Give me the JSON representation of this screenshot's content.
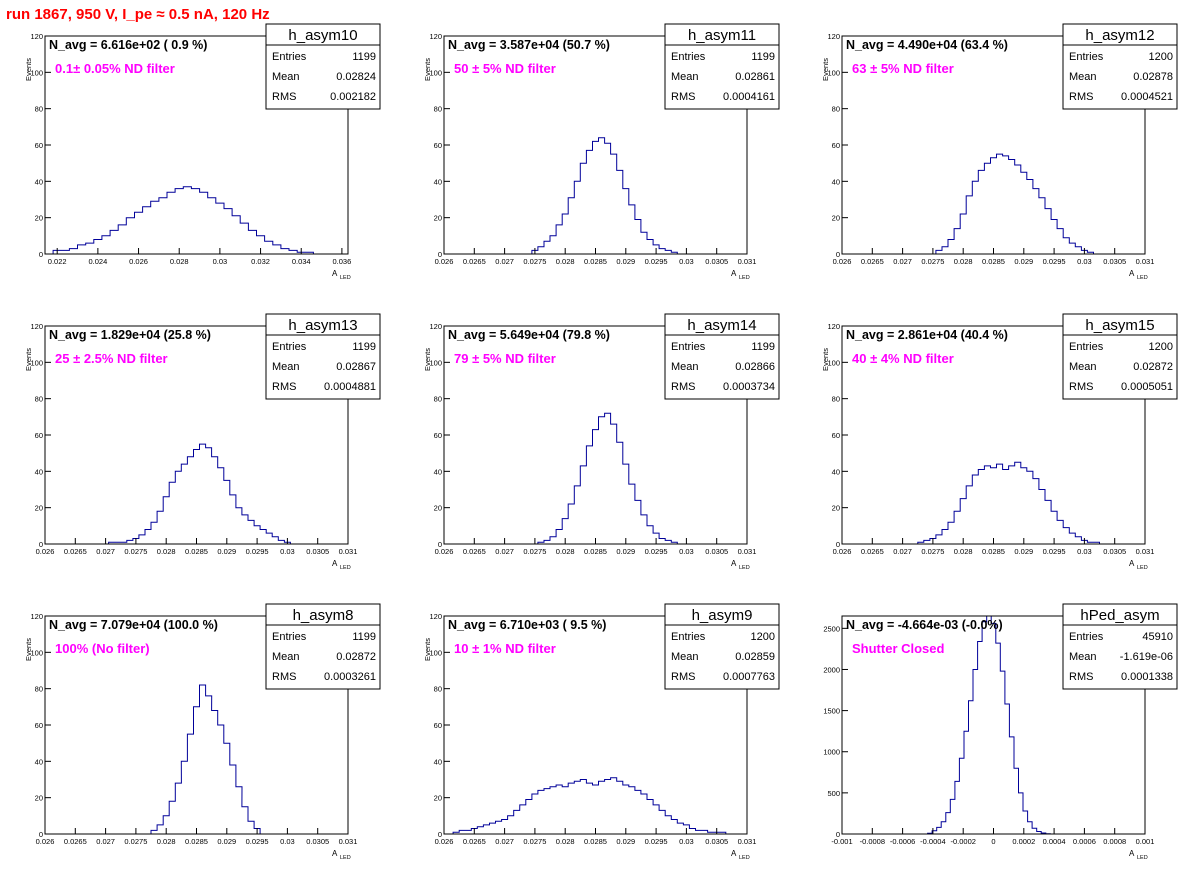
{
  "run_title": "run 1867,   950 V, I_pe ≈ 0.5 nA, 120 Hz",
  "stat_labels": {
    "entries": "Entries",
    "mean": "Mean",
    "rms": "RMS"
  },
  "colors": {
    "histogram": "#000099",
    "annotation": "#ff00ff",
    "title": "#ff0000",
    "frame": "#000000"
  },
  "chart_data": [
    {
      "type": "bar",
      "name": "h_asym10",
      "navg": "N_avg = 6.616e+02 ( 0.9 %)",
      "filter": "0.1± 0.05% ND filter",
      "stats": {
        "entries": "1199",
        "mean": "0.02824",
        "rms": "0.002182"
      },
      "xlabel": "A",
      "xlabel_sub": "LED",
      "ylabel": "Events",
      "xlim": [
        0.0214,
        0.0363
      ],
      "ylim": [
        0,
        120
      ],
      "xticks": [
        0.022,
        0.024,
        0.026,
        0.028,
        0.03,
        0.032,
        0.034,
        0.036
      ],
      "xtick_labels": [
        "0.022",
        "0.024",
        "0.026",
        "0.028",
        "0.03",
        "0.032",
        "0.034",
        "0.036"
      ],
      "yticks": [
        0,
        20,
        40,
        60,
        80,
        100,
        120
      ],
      "ytick_labels": [
        "0",
        "20",
        "40",
        "60",
        "80",
        "100",
        "120"
      ],
      "x": [
        0.022,
        0.0224,
        0.0228,
        0.0232,
        0.0236,
        0.024,
        0.0244,
        0.0248,
        0.0252,
        0.0256,
        0.026,
        0.0264,
        0.0268,
        0.0272,
        0.0276,
        0.028,
        0.0284,
        0.0288,
        0.0292,
        0.0296,
        0.03,
        0.0304,
        0.0308,
        0.0312,
        0.0316,
        0.032,
        0.0324,
        0.0328,
        0.0332,
        0.0336,
        0.034,
        0.0344
      ],
      "values": [
        2,
        2,
        3,
        5,
        6,
        8,
        10,
        13,
        16,
        20,
        23,
        26,
        29,
        31,
        34,
        36,
        37,
        36,
        34,
        31,
        28,
        25,
        21,
        17,
        13,
        10,
        7,
        5,
        3,
        2,
        1,
        1
      ]
    },
    {
      "type": "bar",
      "name": "h_asym11",
      "navg": "N_avg = 3.587e+04 (50.7 %)",
      "filter": "50 ± 5% ND filter",
      "stats": {
        "entries": "1199",
        "mean": "0.02861",
        "rms": "0.0004161"
      },
      "xlabel": "A",
      "xlabel_sub": "LED",
      "ylabel": "Events",
      "xlim": [
        0.026,
        0.031
      ],
      "ylim": [
        0,
        120
      ],
      "xticks": [
        0.026,
        0.0265,
        0.027,
        0.0275,
        0.028,
        0.0285,
        0.029,
        0.0295,
        0.03,
        0.0305,
        0.031
      ],
      "xtick_labels": [
        "0.026",
        "0.0265",
        "0.027",
        "0.0275",
        "0.028",
        "0.0285",
        "0.029",
        "0.0295",
        "0.03",
        "0.0305",
        "0.031"
      ],
      "yticks": [
        0,
        20,
        40,
        60,
        80,
        100,
        120
      ],
      "ytick_labels": [
        "0",
        "20",
        "40",
        "60",
        "80",
        "100",
        "120"
      ],
      "x": [
        0.0275,
        0.0276,
        0.0277,
        0.0278,
        0.0279,
        0.028,
        0.0281,
        0.0282,
        0.0283,
        0.0284,
        0.0285,
        0.0286,
        0.0287,
        0.0288,
        0.0289,
        0.029,
        0.0291,
        0.0292,
        0.0293,
        0.0294,
        0.0295,
        0.0296,
        0.0297,
        0.0298
      ],
      "values": [
        2,
        4,
        7,
        10,
        16,
        22,
        31,
        40,
        50,
        57,
        62,
        64,
        61,
        55,
        46,
        36,
        27,
        19,
        12,
        8,
        5,
        3,
        2,
        1
      ]
    },
    {
      "type": "bar",
      "name": "h_asym12",
      "navg": "N_avg = 4.490e+04 (63.4 %)",
      "filter": "63 ± 5% ND filter",
      "stats": {
        "entries": "1200",
        "mean": "0.02878",
        "rms": "0.0004521"
      },
      "xlabel": "A",
      "xlabel_sub": "LED",
      "ylabel": "Events",
      "xlim": [
        0.026,
        0.031
      ],
      "ylim": [
        0,
        120
      ],
      "xticks": [
        0.026,
        0.0265,
        0.027,
        0.0275,
        0.028,
        0.0285,
        0.029,
        0.0295,
        0.03,
        0.0305,
        0.031
      ],
      "xtick_labels": [
        "0.026",
        "0.0265",
        "0.027",
        "0.0275",
        "0.028",
        "0.0285",
        "0.029",
        "0.0295",
        "0.03",
        "0.0305",
        "0.031"
      ],
      "yticks": [
        0,
        20,
        40,
        60,
        80,
        100,
        120
      ],
      "ytick_labels": [
        "0",
        "20",
        "40",
        "60",
        "80",
        "100",
        "120"
      ],
      "x": [
        0.0276,
        0.0277,
        0.0278,
        0.0279,
        0.028,
        0.0281,
        0.0282,
        0.0283,
        0.0284,
        0.0285,
        0.0286,
        0.0287,
        0.0288,
        0.0289,
        0.029,
        0.0291,
        0.0292,
        0.0293,
        0.0294,
        0.0295,
        0.0296,
        0.0297,
        0.0298,
        0.0299,
        0.03,
        0.0301
      ],
      "values": [
        2,
        4,
        8,
        14,
        22,
        32,
        40,
        46,
        50,
        53,
        55,
        54,
        52,
        49,
        45,
        41,
        36,
        31,
        25,
        19,
        14,
        9,
        6,
        4,
        2,
        1
      ]
    },
    {
      "type": "bar",
      "name": "h_asym13",
      "navg": "N_avg = 1.829e+04 (25.8 %)",
      "filter": "25 ± 2.5% ND filter",
      "stats": {
        "entries": "1199",
        "mean": "0.02867",
        "rms": "0.0004881"
      },
      "xlabel": "A",
      "xlabel_sub": "LED",
      "ylabel": "Events",
      "xlim": [
        0.026,
        0.031
      ],
      "ylim": [
        0,
        120
      ],
      "xticks": [
        0.026,
        0.0265,
        0.027,
        0.0275,
        0.028,
        0.0285,
        0.029,
        0.0295,
        0.03,
        0.0305,
        0.031
      ],
      "xtick_labels": [
        "0.026",
        "0.0265",
        "0.027",
        "0.0275",
        "0.028",
        "0.0285",
        "0.029",
        "0.0295",
        "0.03",
        "0.0305",
        "0.031"
      ],
      "yticks": [
        0,
        20,
        40,
        60,
        80,
        100,
        120
      ],
      "ytick_labels": [
        "0",
        "20",
        "40",
        "60",
        "80",
        "100",
        "120"
      ],
      "x": [
        0.0271,
        0.0272,
        0.0273,
        0.0274,
        0.0275,
        0.0276,
        0.0277,
        0.0278,
        0.0279,
        0.028,
        0.0281,
        0.0282,
        0.0283,
        0.0284,
        0.0285,
        0.0286,
        0.0287,
        0.0288,
        0.0289,
        0.029,
        0.0291,
        0.0292,
        0.0293,
        0.0294,
        0.0295,
        0.0296,
        0.0297,
        0.0298,
        0.0299,
        0.03
      ],
      "values": [
        1,
        1,
        1,
        2,
        3,
        5,
        8,
        12,
        18,
        26,
        34,
        40,
        44,
        48,
        52,
        55,
        53,
        48,
        42,
        35,
        27,
        20,
        16,
        13,
        10,
        8,
        6,
        4,
        2,
        1
      ]
    },
    {
      "type": "bar",
      "name": "h_asym14",
      "navg": "N_avg = 5.649e+04 (79.8 %)",
      "filter": "79 ± 5% ND filter",
      "stats": {
        "entries": "1199",
        "mean": "0.02866",
        "rms": "0.0003734"
      },
      "xlabel": "A",
      "xlabel_sub": "LED",
      "ylabel": "Events",
      "xlim": [
        0.026,
        0.031
      ],
      "ylim": [
        0,
        120
      ],
      "xticks": [
        0.026,
        0.0265,
        0.027,
        0.0275,
        0.028,
        0.0285,
        0.029,
        0.0295,
        0.03,
        0.0305,
        0.031
      ],
      "xtick_labels": [
        "0.026",
        "0.0265",
        "0.027",
        "0.0275",
        "0.028",
        "0.0285",
        "0.029",
        "0.0295",
        "0.03",
        "0.0305",
        "0.031"
      ],
      "yticks": [
        0,
        20,
        40,
        60,
        80,
        100,
        120
      ],
      "ytick_labels": [
        "0",
        "20",
        "40",
        "60",
        "80",
        "100",
        "120"
      ],
      "x": [
        0.0276,
        0.0277,
        0.0278,
        0.0279,
        0.028,
        0.0281,
        0.0282,
        0.0283,
        0.0284,
        0.0285,
        0.0286,
        0.0287,
        0.0288,
        0.0289,
        0.029,
        0.0291,
        0.0292,
        0.0293,
        0.0294,
        0.0295,
        0.0296,
        0.0297,
        0.0298
      ],
      "values": [
        1,
        2,
        4,
        8,
        14,
        22,
        32,
        43,
        54,
        63,
        70,
        72,
        66,
        56,
        44,
        33,
        24,
        16,
        10,
        6,
        3,
        2,
        1
      ]
    },
    {
      "type": "bar",
      "name": "h_asym15",
      "navg": "N_avg = 2.861e+04 (40.4 %)",
      "filter": "40 ± 4% ND filter",
      "stats": {
        "entries": "1200",
        "mean": "0.02872",
        "rms": "0.0005051"
      },
      "xlabel": "A",
      "xlabel_sub": "LED",
      "ylabel": "Events",
      "xlim": [
        0.026,
        0.031
      ],
      "ylim": [
        0,
        120
      ],
      "xticks": [
        0.026,
        0.0265,
        0.027,
        0.0275,
        0.028,
        0.0285,
        0.029,
        0.0295,
        0.03,
        0.0305,
        0.031
      ],
      "xtick_labels": [
        "0.026",
        "0.0265",
        "0.027",
        "0.0275",
        "0.028",
        "0.0285",
        "0.029",
        "0.0295",
        "0.03",
        "0.0305",
        "0.031"
      ],
      "yticks": [
        0,
        20,
        40,
        60,
        80,
        100,
        120
      ],
      "ytick_labels": [
        "0",
        "20",
        "40",
        "60",
        "80",
        "100",
        "120"
      ],
      "x": [
        0.0273,
        0.0274,
        0.0275,
        0.0276,
        0.0277,
        0.0278,
        0.0279,
        0.028,
        0.0281,
        0.0282,
        0.0283,
        0.0284,
        0.0285,
        0.0286,
        0.0287,
        0.0288,
        0.0289,
        0.029,
        0.0291,
        0.0292,
        0.0293,
        0.0294,
        0.0295,
        0.0296,
        0.0297,
        0.0298,
        0.0299,
        0.03,
        0.0301,
        0.0302
      ],
      "values": [
        1,
        2,
        3,
        5,
        8,
        12,
        18,
        25,
        32,
        38,
        41,
        43,
        42,
        44,
        41,
        43,
        45,
        42,
        40,
        36,
        30,
        24,
        18,
        13,
        9,
        6,
        4,
        2,
        1,
        1
      ]
    },
    {
      "type": "bar",
      "name": "h_asym8",
      "navg": "N_avg = 7.079e+04 (100.0 %)",
      "filter": "100% (No filter)",
      "stats": {
        "entries": "1199",
        "mean": "0.02872",
        "rms": "0.0003261"
      },
      "xlabel": "A",
      "xlabel_sub": "LED",
      "ylabel": "Events",
      "xlim": [
        0.026,
        0.031
      ],
      "ylim": [
        0,
        120
      ],
      "xticks": [
        0.026,
        0.0265,
        0.027,
        0.0275,
        0.028,
        0.0285,
        0.029,
        0.0295,
        0.03,
        0.0305,
        0.031
      ],
      "xtick_labels": [
        "0.026",
        "0.0265",
        "0.027",
        "0.0275",
        "0.028",
        "0.0285",
        "0.029",
        "0.0295",
        "0.03",
        "0.0305",
        "0.031"
      ],
      "yticks": [
        0,
        20,
        40,
        60,
        80,
        100,
        120
      ],
      "ytick_labels": [
        "0",
        "20",
        "40",
        "60",
        "80",
        "100",
        "120"
      ],
      "x": [
        0.0278,
        0.0279,
        0.028,
        0.0281,
        0.0282,
        0.0283,
        0.0284,
        0.0285,
        0.0286,
        0.0287,
        0.0288,
        0.0289,
        0.029,
        0.0291,
        0.0292,
        0.0293,
        0.0294,
        0.0295
      ],
      "values": [
        2,
        5,
        10,
        18,
        28,
        40,
        55,
        70,
        82,
        76,
        68,
        60,
        50,
        38,
        26,
        15,
        7,
        3
      ]
    },
    {
      "type": "bar",
      "name": "h_asym9",
      "navg": "N_avg = 6.710e+03 ( 9.5 %)",
      "filter": "10 ± 1% ND filter",
      "stats": {
        "entries": "1200",
        "mean": "0.02859",
        "rms": "0.0007763"
      },
      "xlabel": "A",
      "xlabel_sub": "LED",
      "ylabel": "Events",
      "xlim": [
        0.026,
        0.031
      ],
      "ylim": [
        0,
        120
      ],
      "xticks": [
        0.026,
        0.0265,
        0.027,
        0.0275,
        0.028,
        0.0285,
        0.029,
        0.0295,
        0.03,
        0.0305,
        0.031
      ],
      "xtick_labels": [
        "0.026",
        "0.0265",
        "0.027",
        "0.0275",
        "0.028",
        "0.0285",
        "0.029",
        "0.0295",
        "0.03",
        "0.0305",
        "0.031"
      ],
      "yticks": [
        0,
        20,
        40,
        60,
        80,
        100,
        120
      ],
      "ytick_labels": [
        "0",
        "20",
        "40",
        "60",
        "80",
        "100",
        "120"
      ],
      "x": [
        0.0262,
        0.0263,
        0.0264,
        0.0265,
        0.0266,
        0.0267,
        0.0268,
        0.0269,
        0.027,
        0.0271,
        0.0272,
        0.0273,
        0.0274,
        0.0275,
        0.0276,
        0.0277,
        0.0278,
        0.0279,
        0.028,
        0.0281,
        0.0282,
        0.0283,
        0.0284,
        0.0285,
        0.0286,
        0.0287,
        0.0288,
        0.0289,
        0.029,
        0.0291,
        0.0292,
        0.0293,
        0.0294,
        0.0295,
        0.0296,
        0.0297,
        0.0298,
        0.0299,
        0.03,
        0.0301,
        0.0302,
        0.0303,
        0.0304,
        0.0305,
        0.0306
      ],
      "values": [
        1,
        2,
        2,
        3,
        4,
        5,
        6,
        7,
        8,
        10,
        13,
        16,
        19,
        22,
        24,
        25,
        26,
        27,
        26,
        28,
        29,
        30,
        28,
        27,
        29,
        30,
        31,
        29,
        27,
        26,
        24,
        22,
        19,
        16,
        13,
        10,
        8,
        6,
        5,
        3,
        2,
        2,
        1,
        1,
        1
      ]
    },
    {
      "type": "bar",
      "name": "hPed_asym",
      "navg": "N_avg = -4.664e-03 (-0.0%)",
      "filter": "Shutter Closed",
      "stats": {
        "entries": "45910",
        "mean": "-1.619e-06",
        "rms": "0.0001338"
      },
      "xlabel": "A",
      "xlabel_sub": "LED",
      "ylabel": "",
      "xlim": [
        -0.001,
        0.001
      ],
      "ylim": [
        0,
        2650
      ],
      "xticks": [
        -0.001,
        -0.0008,
        -0.0006,
        -0.0004,
        -0.0002,
        0,
        0.0002,
        0.0004,
        0.0006,
        0.0008,
        0.001
      ],
      "xtick_labels": [
        "-0.001",
        "-0.0008",
        "-0.0006",
        "-0.0004",
        "-0.0002",
        "0",
        "0.0002",
        "0.0004",
        "0.0006",
        "0.0008",
        "0.001"
      ],
      "yticks": [
        0,
        500,
        1000,
        1500,
        2000,
        2500
      ],
      "ytick_labels": [
        "0",
        "500",
        "1000",
        "1500",
        "2000",
        "2500"
      ],
      "x": [
        -0.00042,
        -0.00039,
        -0.00036,
        -0.00033,
        -0.0003,
        -0.00027,
        -0.00024,
        -0.00021,
        -0.00018,
        -0.00015,
        -0.00012,
        -9e-05,
        -6e-05,
        -3e-05,
        0.0,
        3e-05,
        6e-05,
        9e-05,
        0.00012,
        0.00015,
        0.00018,
        0.00021,
        0.00024,
        0.00027,
        0.0003,
        0.00033,
        0.00036
      ],
      "values": [
        10,
        40,
        80,
        150,
        260,
        420,
        640,
        920,
        1250,
        1620,
        2000,
        2340,
        2580,
        2650,
        2560,
        2320,
        1980,
        1580,
        1180,
        800,
        500,
        280,
        150,
        70,
        30,
        12,
        4
      ]
    }
  ]
}
